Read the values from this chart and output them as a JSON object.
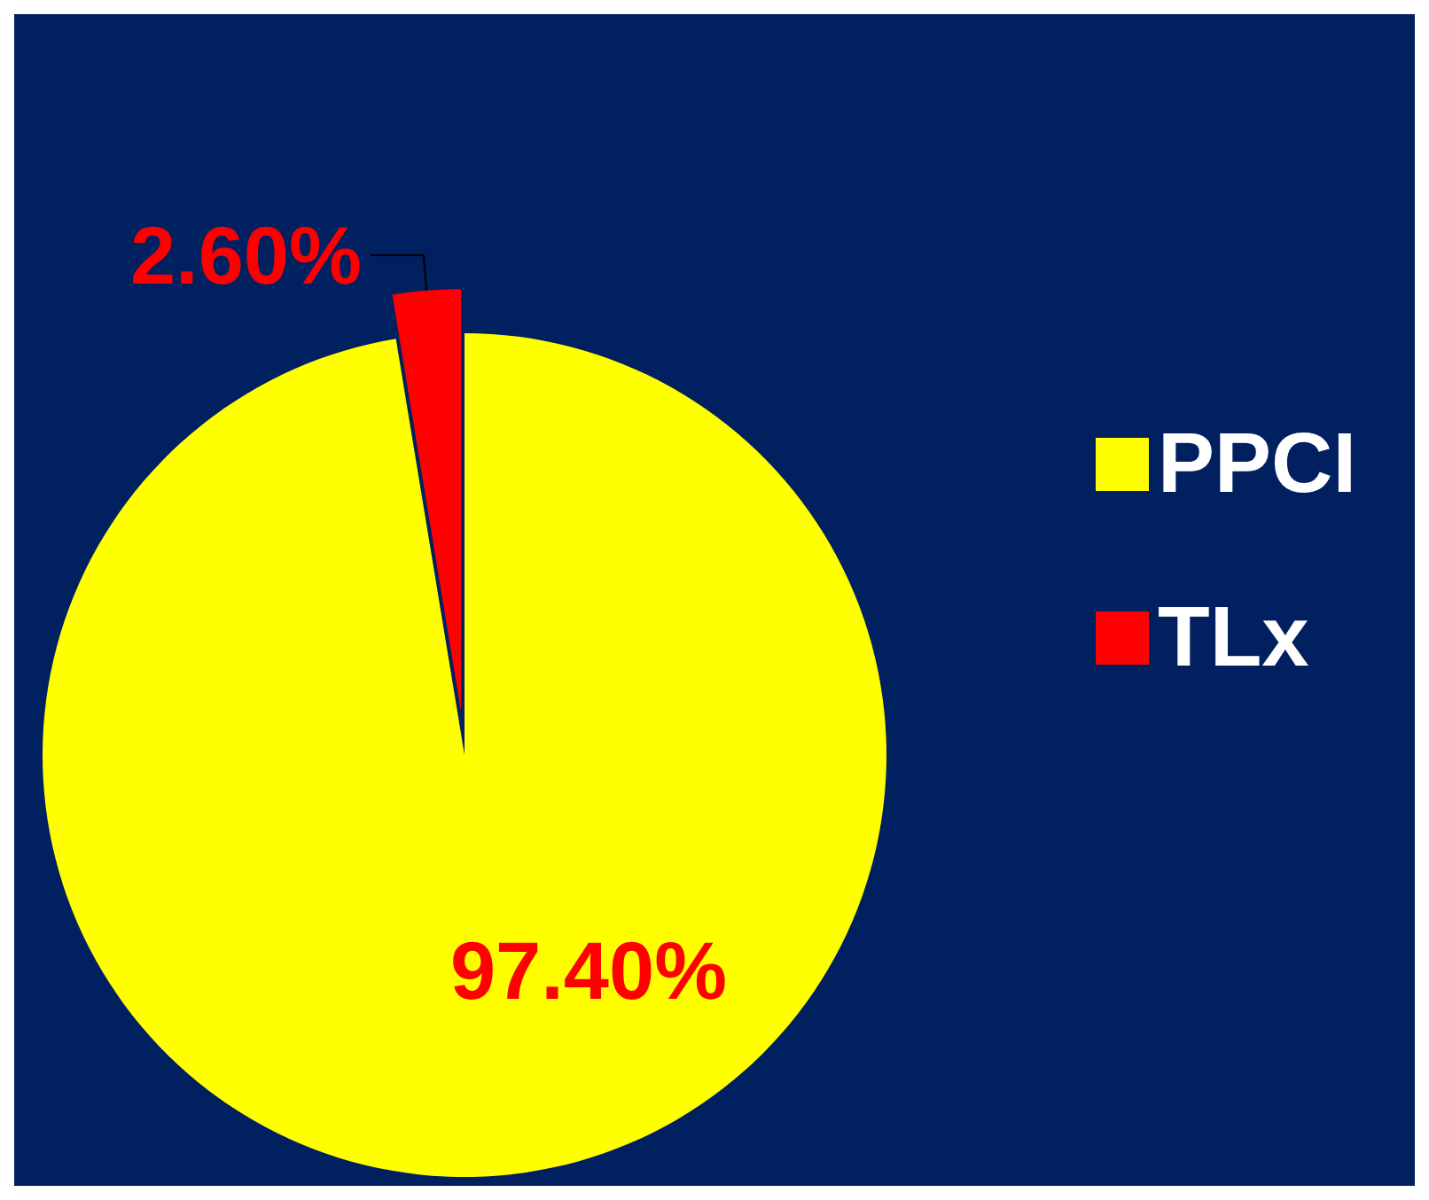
{
  "chart_data": {
    "type": "pie",
    "categories": [
      "PPCI",
      "TLx"
    ],
    "values": [
      97.4,
      2.6
    ],
    "colors": [
      "#ffff00",
      "#ff0000"
    ],
    "value_labels": [
      "97.40%",
      "2.60%"
    ],
    "legend": "right"
  }
}
